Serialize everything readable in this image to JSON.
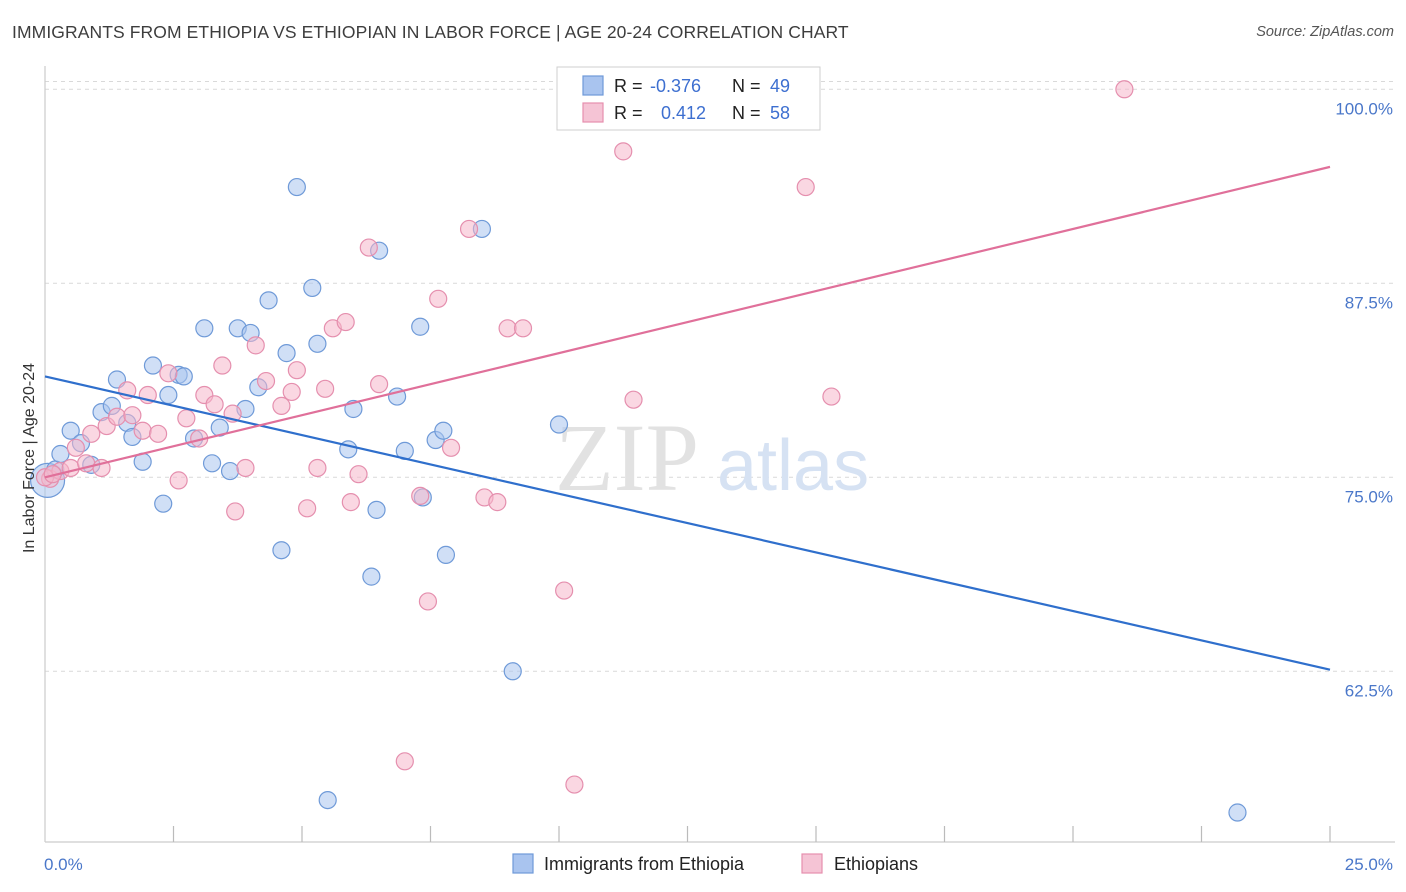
{
  "title": "IMMIGRANTS FROM ETHIOPIA VS ETHIOPIAN IN LABOR FORCE | AGE 20-24 CORRELATION CHART",
  "source": "Source: ZipAtlas.com",
  "watermark": {
    "zip": "ZIP",
    "atlas": "atlas"
  },
  "colors": {
    "blue_fill": "#a9c4ef",
    "blue_stroke": "#6f9ad8",
    "blue_line": "#2f6fcc",
    "pink_fill": "#f5b7cb",
    "pink_stroke": "#e58fae",
    "pink_line": "#e0709a",
    "grid": "#d9d9d9",
    "tick_label": "#4a77c9"
  },
  "legend": {
    "rows": [
      {
        "r_label": "R =",
        "r_value": "-0.376",
        "n_label": "N =",
        "n_value": "49"
      },
      {
        "r_label": "R =",
        "r_value": "0.412",
        "n_label": "N =",
        "n_value": "58"
      }
    ]
  },
  "bottom_legend": [
    "Immigrants from Ethiopia",
    "Ethiopians"
  ],
  "chart_data": {
    "type": "scatter",
    "title": "IMMIGRANTS FROM ETHIOPIA VS ETHIOPIAN IN LABOR FORCE | AGE 20-24 CORRELATION CHART",
    "xlabel": "",
    "ylabel": "In Labor Force | Age 20-24",
    "xlim": [
      0,
      25
    ],
    "ylim": [
      51.5,
      101.5
    ],
    "x_tick_labels": [
      "0.0%",
      "25.0%"
    ],
    "y_ticks": [
      62.5,
      75.0,
      87.5,
      100.0
    ],
    "y_tick_labels": [
      "62.5%",
      "75.0%",
      "87.5%",
      "100.0%"
    ],
    "grid": true,
    "legend_placement": "top-center",
    "series": [
      {
        "name": "Immigrants from Ethiopia",
        "trend": {
          "x": [
            0,
            25
          ],
          "y": [
            81.5,
            62.6
          ]
        },
        "points": [
          [
            0.05,
            74.8
          ],
          [
            0.2,
            75.5
          ],
          [
            0.3,
            76.5
          ],
          [
            0.5,
            78.0
          ],
          [
            0.7,
            77.2
          ],
          [
            0.9,
            75.8
          ],
          [
            1.1,
            79.2
          ],
          [
            1.3,
            79.6
          ],
          [
            1.4,
            81.3
          ],
          [
            1.6,
            78.5
          ],
          [
            1.7,
            77.6
          ],
          [
            1.9,
            76.0
          ],
          [
            2.1,
            82.2
          ],
          [
            2.3,
            73.3
          ],
          [
            2.4,
            80.3
          ],
          [
            2.6,
            81.6
          ],
          [
            2.7,
            81.5
          ],
          [
            2.9,
            77.5
          ],
          [
            3.1,
            84.6
          ],
          [
            3.25,
            75.9
          ],
          [
            3.4,
            78.2
          ],
          [
            3.6,
            75.4
          ],
          [
            3.75,
            84.6
          ],
          [
            3.9,
            79.4
          ],
          [
            4.0,
            84.3
          ],
          [
            4.15,
            80.8
          ],
          [
            4.35,
            86.4
          ],
          [
            4.6,
            70.3
          ],
          [
            4.7,
            83.0
          ],
          [
            4.9,
            93.7
          ],
          [
            5.2,
            87.2
          ],
          [
            5.3,
            83.6
          ],
          [
            5.5,
            54.2
          ],
          [
            5.9,
            76.8
          ],
          [
            6.0,
            79.4
          ],
          [
            6.35,
            68.6
          ],
          [
            6.45,
            72.9
          ],
          [
            6.5,
            89.6
          ],
          [
            6.85,
            80.2
          ],
          [
            7.0,
            76.7
          ],
          [
            7.3,
            84.7
          ],
          [
            7.35,
            73.7
          ],
          [
            7.6,
            77.4
          ],
          [
            7.75,
            78.0
          ],
          [
            7.8,
            70.0
          ],
          [
            8.5,
            91.0
          ],
          [
            9.1,
            62.5
          ],
          [
            10.0,
            78.4
          ],
          [
            23.2,
            53.4
          ]
        ]
      },
      {
        "name": "Ethiopians",
        "trend": {
          "x": [
            0,
            25
          ],
          "y": [
            75.0,
            95.0
          ]
        },
        "points": [
          [
            0.1,
            74.9
          ],
          [
            0.3,
            75.4
          ],
          [
            0.5,
            75.6
          ],
          [
            0.6,
            76.9
          ],
          [
            0.8,
            75.9
          ],
          [
            0.9,
            77.8
          ],
          [
            1.1,
            75.6
          ],
          [
            1.2,
            78.3
          ],
          [
            1.4,
            78.9
          ],
          [
            1.6,
            80.6
          ],
          [
            1.7,
            79.0
          ],
          [
            1.9,
            78.0
          ],
          [
            2.0,
            80.3
          ],
          [
            2.2,
            77.8
          ],
          [
            2.4,
            81.7
          ],
          [
            2.6,
            74.8
          ],
          [
            2.75,
            78.8
          ],
          [
            3.0,
            77.5
          ],
          [
            3.1,
            80.3
          ],
          [
            3.3,
            79.7
          ],
          [
            3.45,
            82.2
          ],
          [
            3.65,
            79.1
          ],
          [
            3.7,
            72.8
          ],
          [
            3.9,
            75.6
          ],
          [
            4.1,
            83.5
          ],
          [
            4.3,
            81.2
          ],
          [
            4.6,
            79.6
          ],
          [
            4.8,
            80.5
          ],
          [
            4.9,
            81.9
          ],
          [
            5.1,
            73.0
          ],
          [
            5.3,
            75.6
          ],
          [
            5.45,
            80.7
          ],
          [
            5.6,
            84.6
          ],
          [
            5.85,
            85.0
          ],
          [
            5.95,
            73.4
          ],
          [
            6.1,
            75.2
          ],
          [
            6.3,
            89.8
          ],
          [
            6.5,
            81.0
          ],
          [
            7.0,
            56.7
          ],
          [
            7.3,
            73.8
          ],
          [
            7.45,
            67.0
          ],
          [
            7.65,
            86.5
          ],
          [
            7.9,
            76.9
          ],
          [
            8.25,
            91.0
          ],
          [
            8.55,
            73.7
          ],
          [
            8.8,
            73.4
          ],
          [
            9.0,
            84.6
          ],
          [
            9.3,
            84.6
          ],
          [
            10.1,
            67.7
          ],
          [
            10.3,
            55.2
          ],
          [
            11.25,
            96.0
          ],
          [
            11.45,
            80.0
          ],
          [
            13.85,
            100.0
          ],
          [
            14.8,
            93.7
          ],
          [
            15.3,
            80.2
          ],
          [
            21.0,
            100.0
          ],
          [
            0.0,
            75.0
          ],
          [
            0.15,
            75.2
          ]
        ]
      }
    ]
  }
}
